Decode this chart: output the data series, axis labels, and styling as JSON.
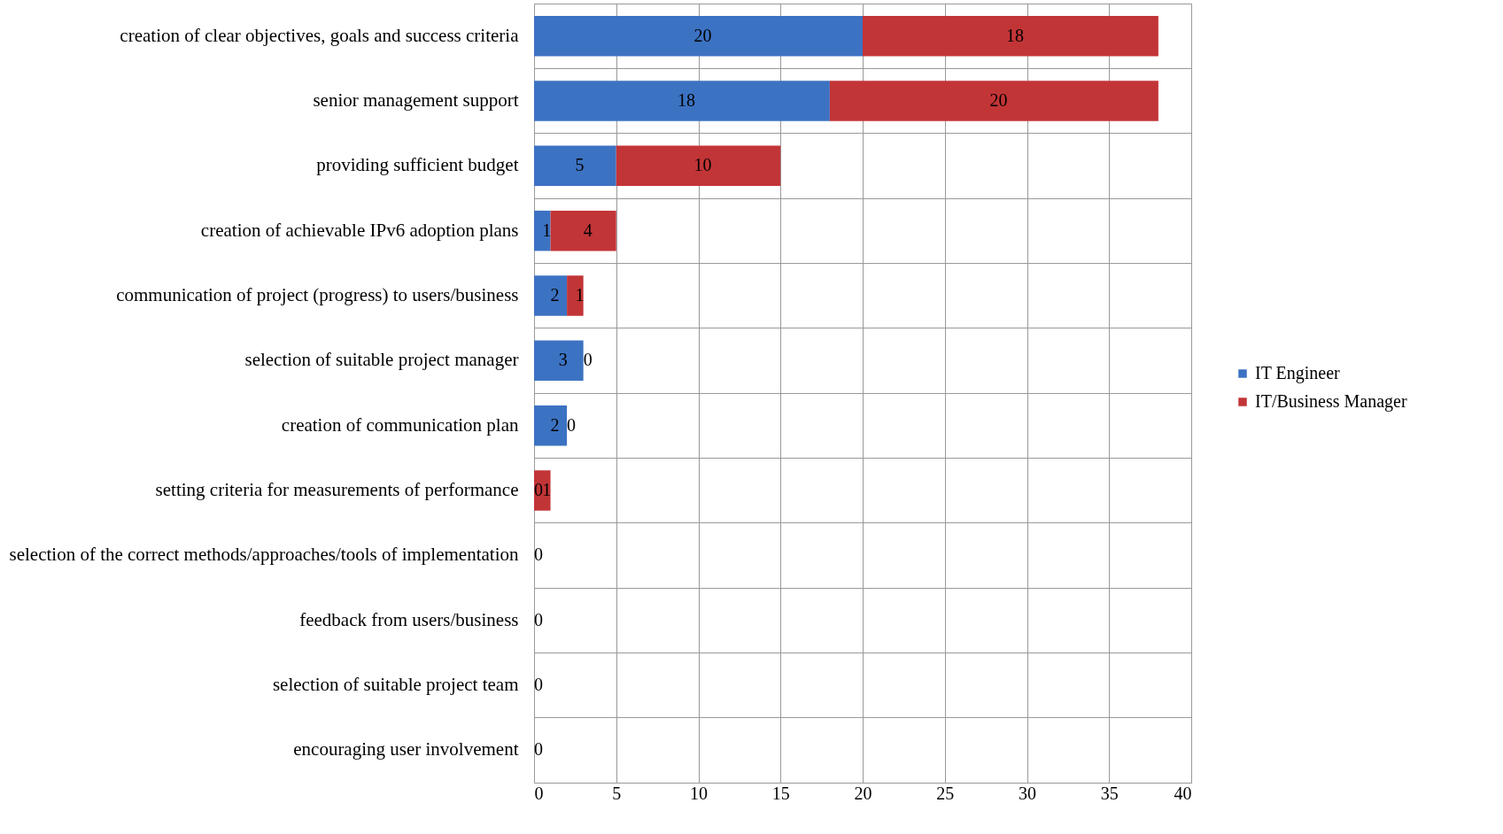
{
  "chart_data": {
    "type": "bar",
    "orientation": "horizontal",
    "stacked": true,
    "grid": true,
    "legend": "right",
    "categories": [
      "creation of clear objectives, goals and success criteria",
      "senior management support",
      "providing sufficient budget",
      "creation of achievable IPv6 adoption plans",
      "communication of project (progress) to users/business",
      "selection of suitable project manager",
      "creation of communication plan",
      "setting criteria for measurements of performance",
      "selection of the correct methods/approaches/tools of implementation",
      "feedback from users/business",
      "selection of suitable project team",
      "encouraging user involvement"
    ],
    "series": [
      {
        "name": "IT Engineer",
        "color": "#3c72c2",
        "values": [
          20,
          18,
          5,
          1,
          2,
          3,
          2,
          0,
          0,
          0,
          0,
          0
        ],
        "value_labels": [
          "20",
          "18",
          "5",
          "1",
          "2",
          "3",
          "2",
          "0",
          "0",
          "0",
          "0",
          "0"
        ]
      },
      {
        "name": "IT/Business Manager",
        "color": "#c23537",
        "values": [
          18,
          20,
          10,
          4,
          1,
          0,
          0,
          1,
          0,
          0,
          0,
          0
        ],
        "value_labels": [
          "18",
          "20",
          "10",
          "4",
          "1",
          "0",
          "0",
          "1",
          null,
          null,
          null,
          null
        ]
      }
    ],
    "xlim": [
      0,
      40
    ],
    "xticks": [
      0,
      5,
      10,
      15,
      20,
      25,
      30,
      35,
      40
    ]
  }
}
